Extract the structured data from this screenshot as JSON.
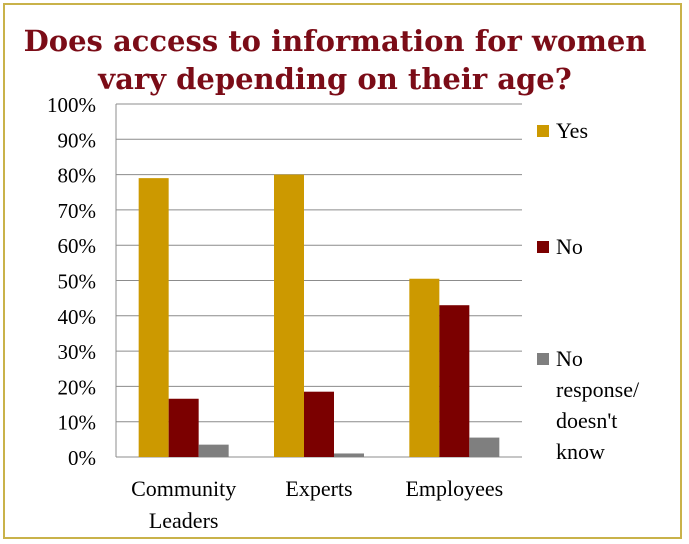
{
  "chart_data": {
    "type": "bar",
    "title": "Does access to information for women vary depending on their age?",
    "title_lines": [
      "Does access to information for women",
      "vary depending on their age?"
    ],
    "categories": [
      "Community Leaders",
      "Experts",
      "Employees"
    ],
    "category_lines": [
      [
        "Community",
        "Leaders"
      ],
      [
        "Experts"
      ],
      [
        "Employees"
      ]
    ],
    "series": [
      {
        "name": "Yes",
        "legend_lines": [
          "Yes"
        ],
        "color": "#cc9900",
        "values": [
          79,
          80,
          50.5
        ]
      },
      {
        "name": "No",
        "legend_lines": [
          "No"
        ],
        "color": "#7b0000",
        "values": [
          16.5,
          18.5,
          43
        ]
      },
      {
        "name": "No response/ doesn't know",
        "legend_lines": [
          "No",
          "response/",
          "doesn't",
          "know"
        ],
        "color": "#7f7f7f",
        "values": [
          3.5,
          1,
          5.5
        ]
      }
    ],
    "ylim": [
      0,
      100
    ],
    "yticks": [
      "0%",
      "10%",
      "20%",
      "30%",
      "40%",
      "50%",
      "60%",
      "70%",
      "80%",
      "90%",
      "100%"
    ],
    "xlabel": "",
    "ylabel": "",
    "grid": true,
    "legend_position": "right"
  }
}
